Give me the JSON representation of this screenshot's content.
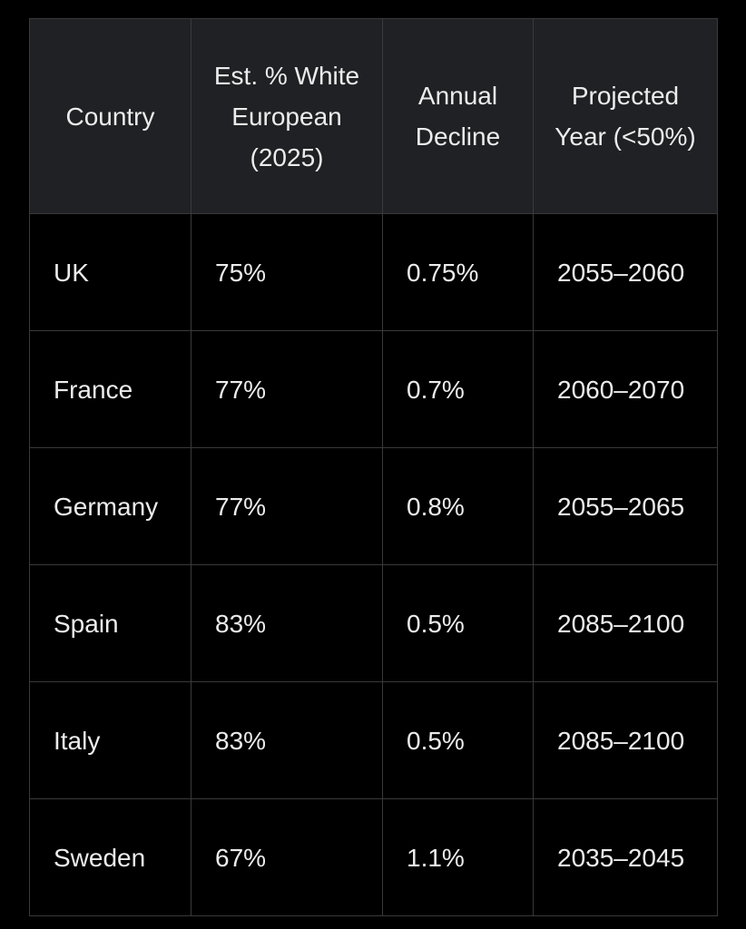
{
  "table": {
    "headers": [
      "Country",
      "Est. % White European (2025)",
      "Annual Decline",
      "Projected Year (<50%)"
    ],
    "rows": [
      {
        "country": "UK",
        "pct": "75%",
        "decline": "0.75%",
        "year": "2055–2060"
      },
      {
        "country": "France",
        "pct": "77%",
        "decline": "0.7%",
        "year": "2060–2070"
      },
      {
        "country": "Germany",
        "pct": "77%",
        "decline": "0.8%",
        "year": "2055–2065"
      },
      {
        "country": "Spain",
        "pct": "83%",
        "decline": "0.5%",
        "year": "2085–2100"
      },
      {
        "country": "Italy",
        "pct": "83%",
        "decline": "0.5%",
        "year": "2085–2100"
      },
      {
        "country": "Sweden",
        "pct": "67%",
        "decline": "1.1%",
        "year": "2035–2045"
      }
    ]
  }
}
